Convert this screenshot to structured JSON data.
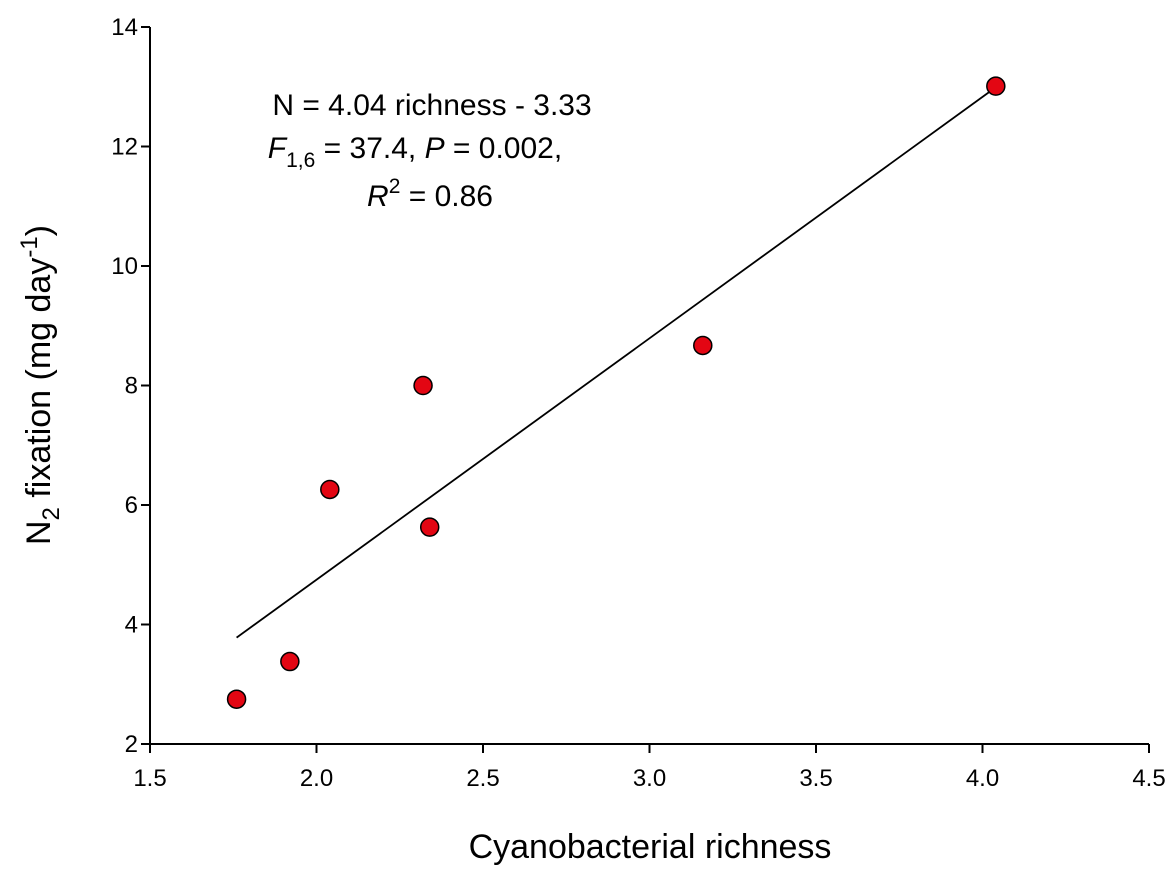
{
  "chart_data": {
    "type": "scatter",
    "xlabel": "Cyanobacterial richness",
    "ylabel": {
      "prefix": "N",
      "subscript": "2",
      "middle": " fixation (mg  day",
      "superscript": "-1",
      "suffix": ")"
    },
    "xlim": [
      1.5,
      4.5
    ],
    "ylim": [
      2,
      14
    ],
    "x_ticks": [
      1.5,
      2.0,
      2.5,
      3.0,
      3.5,
      4.0,
      4.5
    ],
    "x_tick_labels": [
      "1.5",
      "2.0",
      "2.5",
      "3.0",
      "3.5",
      "4.0",
      "4.5"
    ],
    "y_ticks": [
      2,
      4,
      6,
      8,
      10,
      12,
      14
    ],
    "y_tick_labels": [
      "2",
      "4",
      "6",
      "8",
      "10",
      "12",
      "14"
    ],
    "grid": false,
    "marker_color": "#e30613",
    "marker_edge_color": "#000000",
    "series": [
      {
        "points": [
          {
            "x": 1.76,
            "y": 2.75
          },
          {
            "x": 1.92,
            "y": 3.38
          },
          {
            "x": 2.04,
            "y": 6.26
          },
          {
            "x": 2.32,
            "y": 8.0
          },
          {
            "x": 2.34,
            "y": 5.63
          },
          {
            "x": 3.16,
            "y": 8.67
          },
          {
            "x": 4.04,
            "y": 13.01
          }
        ]
      }
    ],
    "fit_line": {
      "slope": 4.04,
      "intercept": -3.33,
      "x_range": [
        1.76,
        4.04
      ]
    },
    "annotation": {
      "equation": "N = 4.04 richness - 3.33",
      "f_symbol": "F",
      "f_subscript": "1,6",
      "f_rest_1": " = 37.4, ",
      "p_symbol": "P",
      "f_rest_2": " = 0.002,",
      "r_symbol": "R",
      "r_superscript": "2",
      "r_rest": " = 0.86"
    }
  }
}
